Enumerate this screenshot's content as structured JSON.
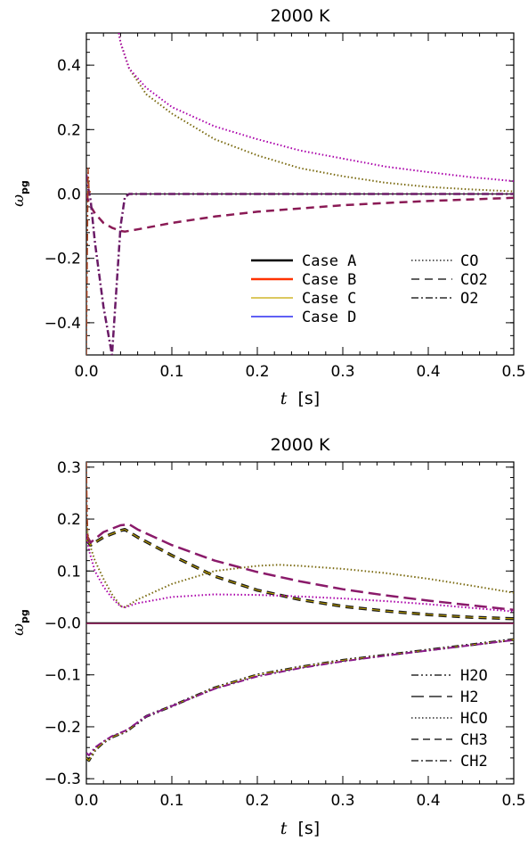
{
  "chart_data": [
    {
      "type": "line",
      "title": "2000 K",
      "xlabel_var": "t",
      "xlabel_unit": "[s]",
      "ylabel_main": "ω",
      "ylabel_sub": "pg",
      "xlim": [
        0,
        0.5
      ],
      "ylim": [
        -0.5,
        0.5
      ],
      "xticks": [
        {
          "v": 0.0,
          "label": "0.0"
        },
        {
          "v": 0.1,
          "label": "0.1"
        },
        {
          "v": 0.2,
          "label": "0.2"
        },
        {
          "v": 0.3,
          "label": "0.3"
        },
        {
          "v": 0.4,
          "label": "0.4"
        },
        {
          "v": 0.5,
          "label": "0.5"
        }
      ],
      "yticks": [
        {
          "v": 0.4,
          "label": "0.4"
        },
        {
          "v": 0.2,
          "label": "0.2"
        },
        {
          "v": 0.0,
          "label": "0.0"
        },
        {
          "v": -0.2,
          "label": "−0.2"
        },
        {
          "v": -0.4,
          "label": "−0.4"
        }
      ],
      "legend_cases": [
        {
          "label": "Case A",
          "color": "#000000"
        },
        {
          "label": "Case B",
          "color": "#ff3300"
        },
        {
          "label": "Case C",
          "color": "#c8a800"
        },
        {
          "label": "Case D",
          "color": "#0000ee"
        }
      ],
      "legend_species": [
        {
          "label": "CO",
          "dash": "1.5,2.5"
        },
        {
          "label": "CO2",
          "dash": "9,6"
        },
        {
          "label": "O2",
          "dash": "8,3,2,3"
        }
      ],
      "series": [
        {
          "color": "#000000",
          "dash": "",
          "width": 1,
          "x": [
            0,
            0.5
          ],
          "y": [
            0,
            0
          ]
        },
        {
          "color": "#7a6a10",
          "dash": "1.5,2.5",
          "width": 2,
          "x": [
            0.038,
            0.04,
            0.045,
            0.05,
            0.07,
            0.1,
            0.15,
            0.2,
            0.25,
            0.3,
            0.35,
            0.4,
            0.45,
            0.5
          ],
          "y": [
            0.5,
            0.47,
            0.43,
            0.39,
            0.31,
            0.25,
            0.17,
            0.12,
            0.08,
            0.055,
            0.035,
            0.022,
            0.014,
            0.008
          ]
        },
        {
          "color": "#aa00aa",
          "dash": "1.5,2.5",
          "width": 2,
          "x": [
            0.038,
            0.04,
            0.045,
            0.05,
            0.07,
            0.1,
            0.15,
            0.2,
            0.25,
            0.3,
            0.35,
            0.4,
            0.45,
            0.5
          ],
          "y": [
            0.5,
            0.47,
            0.43,
            0.39,
            0.33,
            0.27,
            0.21,
            0.17,
            0.135,
            0.11,
            0.085,
            0.068,
            0.052,
            0.04
          ]
        },
        {
          "color": "#8a1a55",
          "dash": "9,6",
          "width": 2.5,
          "x": [
            0,
            0.003,
            0.01,
            0.02,
            0.03,
            0.04,
            0.045,
            0.06,
            0.1,
            0.15,
            0.2,
            0.25,
            0.3,
            0.35,
            0.4,
            0.45,
            0.5
          ],
          "y": [
            0,
            -0.03,
            -0.06,
            -0.09,
            -0.105,
            -0.115,
            -0.117,
            -0.11,
            -0.09,
            -0.07,
            -0.055,
            -0.045,
            -0.035,
            -0.028,
            -0.022,
            -0.017,
            -0.012
          ]
        },
        {
          "color": "#6a1a66",
          "dash": "8,3,2,3",
          "width": 2.5,
          "x": [
            0,
            0.002,
            0.005,
            0.01,
            0.02,
            0.03,
            0.035,
            0.04,
            0.045,
            0.05,
            0.1,
            0.2,
            0.3,
            0.4,
            0.5
          ],
          "y": [
            0.06,
            0.02,
            -0.02,
            -0.15,
            -0.35,
            -0.5,
            -0.3,
            -0.1,
            -0.01,
            0,
            0,
            0,
            0,
            0,
            0
          ]
        },
        {
          "color": "#aa4422",
          "dash": "8,3,2,3",
          "width": 1.5,
          "x": [
            0,
            0.001,
            0.002,
            0.003,
            0.005
          ],
          "y": [
            -0.5,
            -0.2,
            0.08,
            0.02,
            0
          ]
        }
      ]
    },
    {
      "type": "line",
      "title": "2000 K",
      "xlabel_var": "t",
      "xlabel_unit": "[s]",
      "ylabel_main": "ω",
      "ylabel_sub": "pg",
      "xlim": [
        0,
        0.5
      ],
      "ylim": [
        -0.31,
        0.31
      ],
      "xticks": [
        {
          "v": 0.0,
          "label": "0.0"
        },
        {
          "v": 0.1,
          "label": "0.1"
        },
        {
          "v": 0.2,
          "label": "0.2"
        },
        {
          "v": 0.3,
          "label": "0.3"
        },
        {
          "v": 0.4,
          "label": "0.4"
        },
        {
          "v": 0.5,
          "label": "0.5"
        }
      ],
      "yticks": [
        {
          "v": 0.3,
          "label": "0.3"
        },
        {
          "v": 0.2,
          "label": "0.2"
        },
        {
          "v": 0.1,
          "label": "0.1"
        },
        {
          "v": 0.0,
          "label": "−0.0"
        },
        {
          "v": -0.1,
          "label": "−0.1"
        },
        {
          "v": -0.2,
          "label": "−0.2"
        },
        {
          "v": -0.3,
          "label": "−0.3"
        }
      ],
      "legend_species": [
        {
          "label": "H2O",
          "dash": "8,3,2,3,2,3,2,3"
        },
        {
          "label": "H2",
          "dash": "14,6"
        },
        {
          "label": "HCO",
          "dash": "1.5,2.5"
        },
        {
          "label": "CH3",
          "dash": "8,5"
        },
        {
          "label": "CH2",
          "dash": "8,3,2,3"
        }
      ],
      "series": [
        {
          "color": "#000000",
          "dash": "",
          "width": 1.5,
          "x": [
            0,
            0.5
          ],
          "y": [
            0,
            0
          ]
        },
        {
          "color": "#8a1a55",
          "dash": "",
          "width": 1.5,
          "x": [
            0,
            0.5
          ],
          "y": [
            -0.001,
            -0.001
          ]
        },
        {
          "color": "#1a1a1a",
          "dash": "9,6",
          "width": 3.5,
          "x": [
            0,
            0.005,
            0.02,
            0.04,
            0.045,
            0.06,
            0.1,
            0.15,
            0.2,
            0.25,
            0.3,
            0.35,
            0.4,
            0.45,
            0.5
          ],
          "y": [
            0.16,
            0.15,
            0.165,
            0.178,
            0.18,
            0.165,
            0.13,
            0.09,
            0.063,
            0.045,
            0.032,
            0.023,
            0.016,
            0.011,
            0.008
          ]
        },
        {
          "color": "#c8a800",
          "dash": "9,6",
          "width": 1,
          "x": [
            0,
            0.005,
            0.02,
            0.04,
            0.045,
            0.06,
            0.1,
            0.15,
            0.2,
            0.25,
            0.3,
            0.35,
            0.4,
            0.45,
            0.5
          ],
          "y": [
            0.16,
            0.15,
            0.165,
            0.178,
            0.18,
            0.165,
            0.13,
            0.09,
            0.063,
            0.045,
            0.032,
            0.023,
            0.016,
            0.011,
            0.008
          ]
        },
        {
          "color": "#8a1a6a",
          "dash": "14,6",
          "width": 2.5,
          "x": [
            0,
            0.005,
            0.02,
            0.04,
            0.05,
            0.06,
            0.1,
            0.15,
            0.2,
            0.25,
            0.3,
            0.35,
            0.4,
            0.45,
            0.5
          ],
          "y": [
            0.17,
            0.155,
            0.175,
            0.188,
            0.19,
            0.18,
            0.15,
            0.12,
            0.098,
            0.08,
            0.065,
            0.053,
            0.043,
            0.034,
            0.025
          ]
        },
        {
          "color": "#7a6a10",
          "dash": "1.5,2.5",
          "width": 2,
          "x": [
            0,
            0.003,
            0.01,
            0.02,
            0.03,
            0.04,
            0.045,
            0.06,
            0.1,
            0.15,
            0.2,
            0.225,
            0.25,
            0.3,
            0.35,
            0.4,
            0.45,
            0.5
          ],
          "y": [
            0.19,
            0.155,
            0.12,
            0.085,
            0.055,
            0.033,
            0.03,
            0.045,
            0.075,
            0.1,
            0.11,
            0.112,
            0.11,
            0.104,
            0.096,
            0.085,
            0.072,
            0.058
          ]
        },
        {
          "color": "#aa00aa",
          "dash": "1.5,2.5",
          "width": 2,
          "x": [
            0,
            0.003,
            0.01,
            0.02,
            0.03,
            0.04,
            0.045,
            0.06,
            0.1,
            0.15,
            0.2,
            0.25,
            0.3,
            0.35,
            0.4,
            0.45,
            0.5
          ],
          "y": [
            0.17,
            0.14,
            0.1,
            0.07,
            0.048,
            0.032,
            0.03,
            0.038,
            0.05,
            0.055,
            0.054,
            0.051,
            0.047,
            0.042,
            0.036,
            0.029,
            0.022
          ]
        },
        {
          "color": "#1a1a1a",
          "dash": "8,3,2,3,2,3",
          "width": 3,
          "x": [
            0,
            0.003,
            0.01,
            0.02,
            0.03,
            0.045,
            0.05,
            0.07,
            0.1,
            0.15,
            0.2,
            0.25,
            0.3,
            0.35,
            0.4,
            0.45,
            0.5
          ],
          "y": [
            -0.26,
            -0.265,
            -0.245,
            -0.23,
            -0.22,
            -0.21,
            -0.205,
            -0.18,
            -0.16,
            -0.125,
            -0.1,
            -0.085,
            -0.072,
            -0.062,
            -0.052,
            -0.042,
            -0.032
          ]
        },
        {
          "color": "#c8a800",
          "dash": "8,3,2,3,2,3",
          "width": 1,
          "x": [
            0,
            0.003,
            0.01,
            0.02,
            0.03,
            0.045,
            0.05,
            0.07,
            0.1,
            0.15,
            0.2,
            0.25,
            0.3,
            0.35,
            0.4,
            0.45,
            0.5
          ],
          "y": [
            -0.26,
            -0.265,
            -0.245,
            -0.23,
            -0.22,
            -0.21,
            -0.205,
            -0.18,
            -0.16,
            -0.125,
            -0.1,
            -0.085,
            -0.072,
            -0.062,
            -0.052,
            -0.042,
            -0.032
          ]
        },
        {
          "color": "#8a1a8a",
          "dash": "8,3,2,3",
          "width": 2,
          "x": [
            0,
            0.003,
            0.01,
            0.02,
            0.03,
            0.045,
            0.05,
            0.07,
            0.1,
            0.15,
            0.2,
            0.25,
            0.3,
            0.35,
            0.4,
            0.45,
            0.5
          ],
          "y": [
            -0.25,
            -0.255,
            -0.24,
            -0.228,
            -0.218,
            -0.208,
            -0.203,
            -0.18,
            -0.16,
            -0.127,
            -0.103,
            -0.087,
            -0.074,
            -0.063,
            -0.053,
            -0.043,
            -0.033
          ]
        },
        {
          "color": "#aa4422",
          "dash": "8,3,2,3",
          "width": 1.5,
          "x": [
            0,
            0.001,
            0.002
          ],
          "y": [
            0.31,
            0.2,
            0.16
          ]
        }
      ]
    }
  ]
}
